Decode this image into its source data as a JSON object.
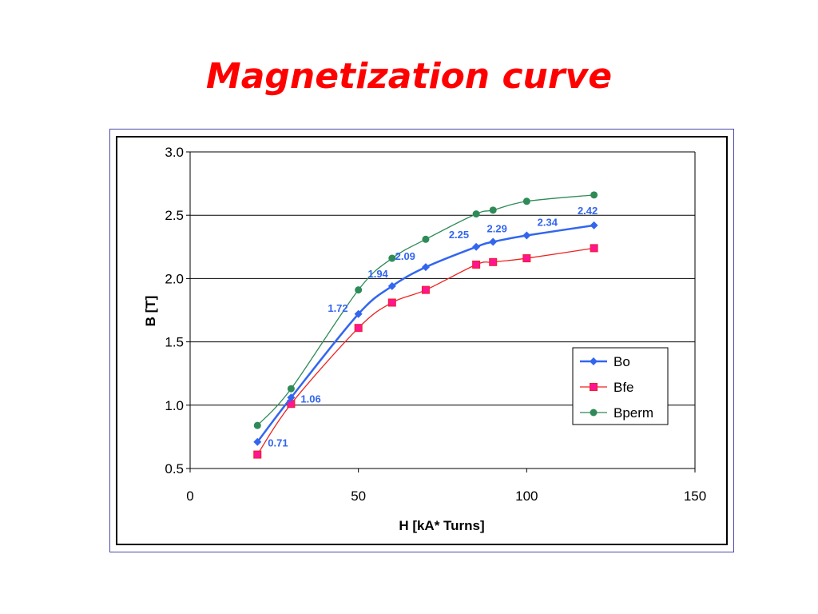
{
  "slide": {
    "title": "Magnetization curve"
  },
  "chart_data": {
    "type": "line",
    "xlabel": "H [kA* Turns]",
    "ylabel": "B [T]",
    "xlim": [
      0,
      150
    ],
    "ylim": [
      0.5,
      3.0
    ],
    "x_ticks": [
      "0",
      "50",
      "100",
      "150"
    ],
    "y_ticks": [
      "0.5",
      "1.0",
      "1.5",
      "2.0",
      "2.5",
      "3.0"
    ],
    "grid": "horizontal major",
    "legend_position": "right",
    "series": [
      {
        "name": "Bo",
        "color": "#3366ee",
        "marker": "diamond",
        "x": [
          20,
          30,
          50,
          60,
          70,
          85,
          90,
          100,
          120
        ],
        "values": [
          0.71,
          1.06,
          1.72,
          1.94,
          2.09,
          2.25,
          2.29,
          2.34,
          2.42
        ],
        "data_labels": [
          "0.71",
          "1.06",
          "1.72",
          "1.94",
          "2.09",
          "2.25",
          "2.29",
          "2.34",
          "2.42"
        ]
      },
      {
        "name": "Bfe",
        "color": "#ee2222",
        "marker_fill": "#ff1493",
        "marker": "square",
        "x": [
          20,
          30,
          50,
          60,
          70,
          85,
          90,
          100,
          120
        ],
        "values": [
          0.61,
          1.01,
          1.61,
          1.81,
          1.91,
          2.11,
          2.13,
          2.16,
          2.24
        ]
      },
      {
        "name": "Bperm",
        "color": "#2e8b57",
        "marker": "circle",
        "x": [
          20,
          30,
          50,
          60,
          70,
          85,
          90,
          100,
          120
        ],
        "values": [
          0.84,
          1.13,
          1.91,
          2.16,
          2.31,
          2.51,
          2.54,
          2.61,
          2.66
        ]
      }
    ]
  }
}
